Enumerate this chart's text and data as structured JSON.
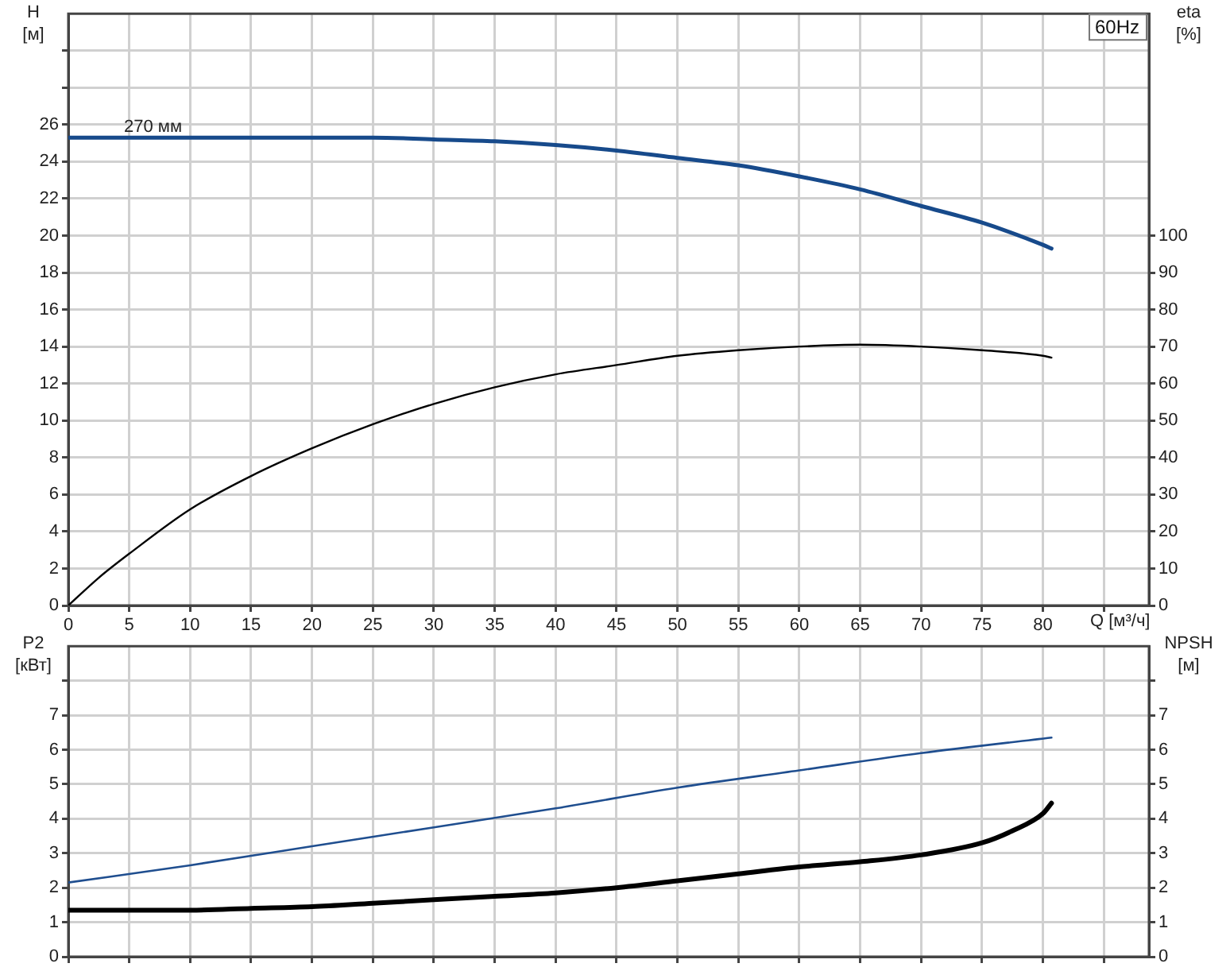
{
  "chart_data": [
    {
      "type": "line",
      "title": "60Hz",
      "xlabel": "Q [м³/ч]",
      "ylabel": "H [м]",
      "y2label": "eta [%]",
      "xlim": [
        0,
        88.7
      ],
      "xticks": [
        0,
        5,
        10,
        15,
        20,
        25,
        30,
        35,
        40,
        45,
        50,
        55,
        60,
        65,
        70,
        75,
        80,
        {
          "value": 85,
          "label": null
        }
      ],
      "ylim": [
        0,
        32
      ],
      "yticks": [
        0,
        2,
        4,
        6,
        8,
        10,
        12,
        14,
        16,
        18,
        20,
        22,
        24,
        26,
        {
          "value": 28,
          "label": null
        },
        {
          "value": 30,
          "label": null
        }
      ],
      "y2lim": [
        0,
        160
      ],
      "y2ticks": [
        0,
        10,
        20,
        30,
        40,
        50,
        60,
        70,
        80,
        90,
        100
      ],
      "grid": true,
      "legend": false,
      "marker": "none",
      "line_style": "solid",
      "series": [
        {
          "name": "270 мм",
          "color": "#174a8b",
          "x": [
            0,
            5,
            10,
            15,
            20,
            25,
            30,
            35,
            40,
            45,
            50,
            55,
            60,
            65,
            70,
            75,
            80,
            80.7
          ],
          "values": [
            25.3,
            25.3,
            25.3,
            25.3,
            25.3,
            25.3,
            25.2,
            25.1,
            24.9,
            24.6,
            24.2,
            23.8,
            23.2,
            22.5,
            21.6,
            20.7,
            19.5,
            19.3
          ]
        },
        {
          "color": "#000000",
          "axis": "y2",
          "x": [
            0,
            2.5,
            5,
            10,
            15,
            20,
            25,
            30,
            35,
            40,
            45,
            50,
            55,
            60,
            65,
            70,
            75,
            80,
            80.7
          ],
          "values": [
            0,
            7.5,
            14,
            26,
            35,
            42.5,
            49,
            54.5,
            59,
            62.5,
            65,
            67.5,
            69,
            70,
            70.5,
            70,
            69,
            67.5,
            67
          ]
        }
      ]
    },
    {
      "type": "line",
      "ylabel": "P2 [кВт]",
      "y2label": "NPSH [м]",
      "xlim": [
        0,
        88.7
      ],
      "xticks": [
        0,
        5,
        10,
        15,
        20,
        25,
        30,
        35,
        40,
        45,
        50,
        55,
        60,
        65,
        70,
        75,
        80,
        {
          "value": 85,
          "label": null
        }
      ],
      "ylim": [
        0,
        9
      ],
      "yticks": [
        0,
        1,
        2,
        3,
        4,
        5,
        6,
        7,
        {
          "value": 8,
          "label": null
        }
      ],
      "y2lim": [
        0,
        9
      ],
      "y2ticks": [
        0,
        1,
        2,
        3,
        4,
        5,
        6,
        7,
        {
          "value": 8,
          "label": null
        }
      ],
      "tick_labels": "y",
      "grid": true,
      "legend": false,
      "marker": "none",
      "line_style": "solid",
      "series": [
        {
          "color": "#1f4e8f",
          "x": [
            0,
            10,
            20,
            30,
            40,
            50,
            60,
            70,
            80.7
          ],
          "values": [
            2.15,
            2.65,
            3.2,
            3.75,
            4.3,
            4.9,
            5.4,
            5.9,
            6.35
          ]
        },
        {
          "color": "#000000",
          "axis": "y2",
          "x": [
            0,
            5,
            10,
            15,
            20,
            25,
            30,
            35,
            40,
            45,
            50,
            55,
            60,
            65,
            70,
            75,
            77.5,
            80,
            80.7
          ],
          "values": [
            1.35,
            1.35,
            1.35,
            1.4,
            1.45,
            1.55,
            1.65,
            1.75,
            1.85,
            2.0,
            2.2,
            2.4,
            2.6,
            2.75,
            2.95,
            3.3,
            3.65,
            4.15,
            4.45
          ]
        }
      ]
    }
  ]
}
